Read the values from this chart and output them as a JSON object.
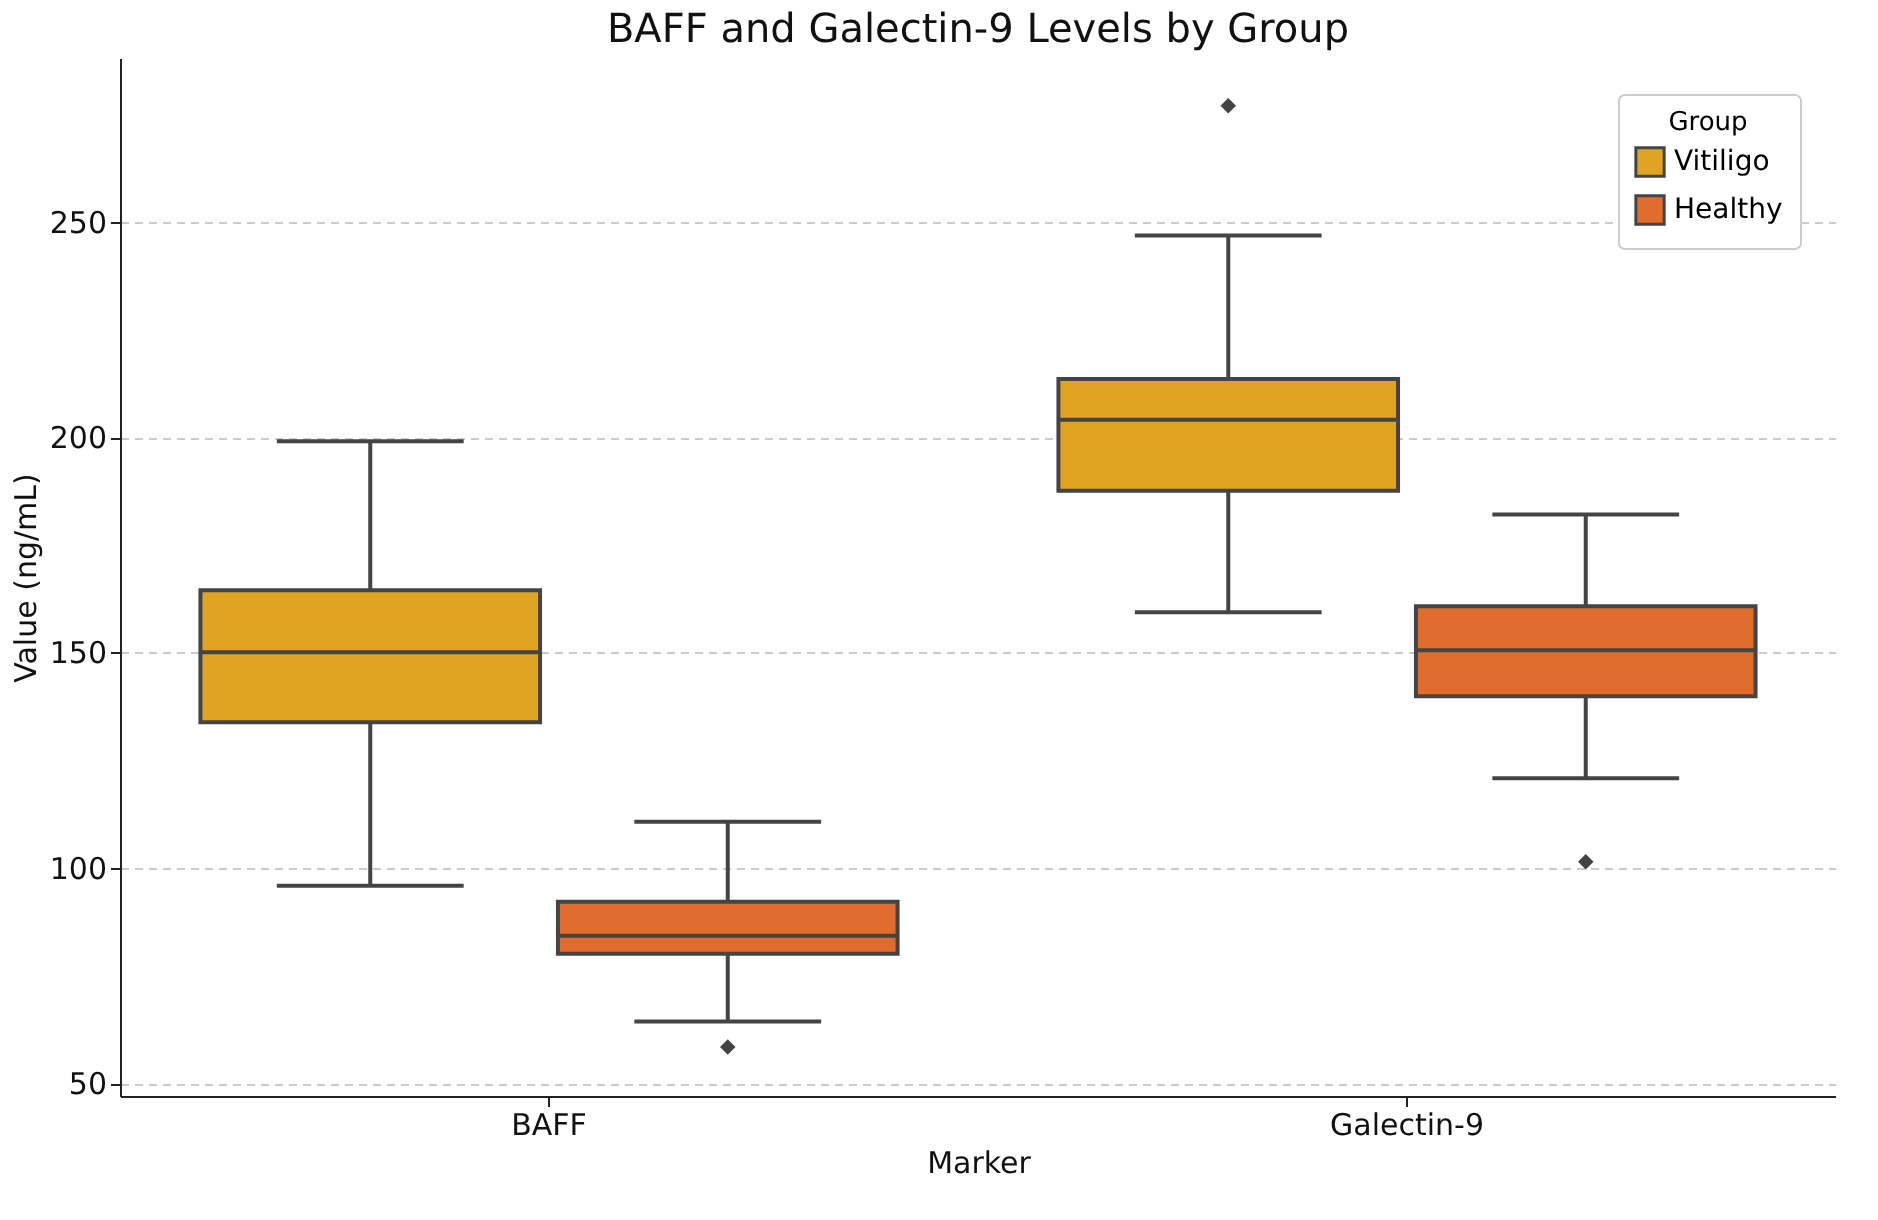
{
  "chart_data": {
    "type": "box",
    "title": "BAFF and Galectin-9 Levels by Group",
    "xlabel": "Marker",
    "ylabel": "Value (ng/mL)",
    "legend_title": "Group",
    "categories": [
      "BAFF",
      "Galectin-9"
    ],
    "series": [
      {
        "name": "Vitiligo",
        "color": "#e0a422",
        "boxes": [
          {
            "low": 95.8,
            "q1": 133.8,
            "median": 150,
            "q3": 164.4,
            "high": 199
          },
          {
            "low": 159.3,
            "q1": 187.5,
            "median": 204,
            "q3": 213.5,
            "high": 246.8,
            "outliers": [
              276.9
            ]
          }
        ]
      },
      {
        "name": "Healthy",
        "color": "#e06d2e",
        "boxes": [
          {
            "low": 64.3,
            "q1": 80,
            "median": 84.2,
            "q3": 92.1,
            "high": 110.7,
            "outliers": [
              58.4
            ]
          },
          {
            "low": 120.8,
            "q1": 139.8,
            "median": 150.5,
            "q3": 160.7,
            "high": 182,
            "outliers": [
              101.4
            ]
          }
        ]
      }
    ],
    "ylim": [
      47,
      288
    ],
    "yticks": [
      50,
      100,
      150,
      200,
      250
    ],
    "grid": "y",
    "legend": "top right",
    "marker": "diamond"
  }
}
